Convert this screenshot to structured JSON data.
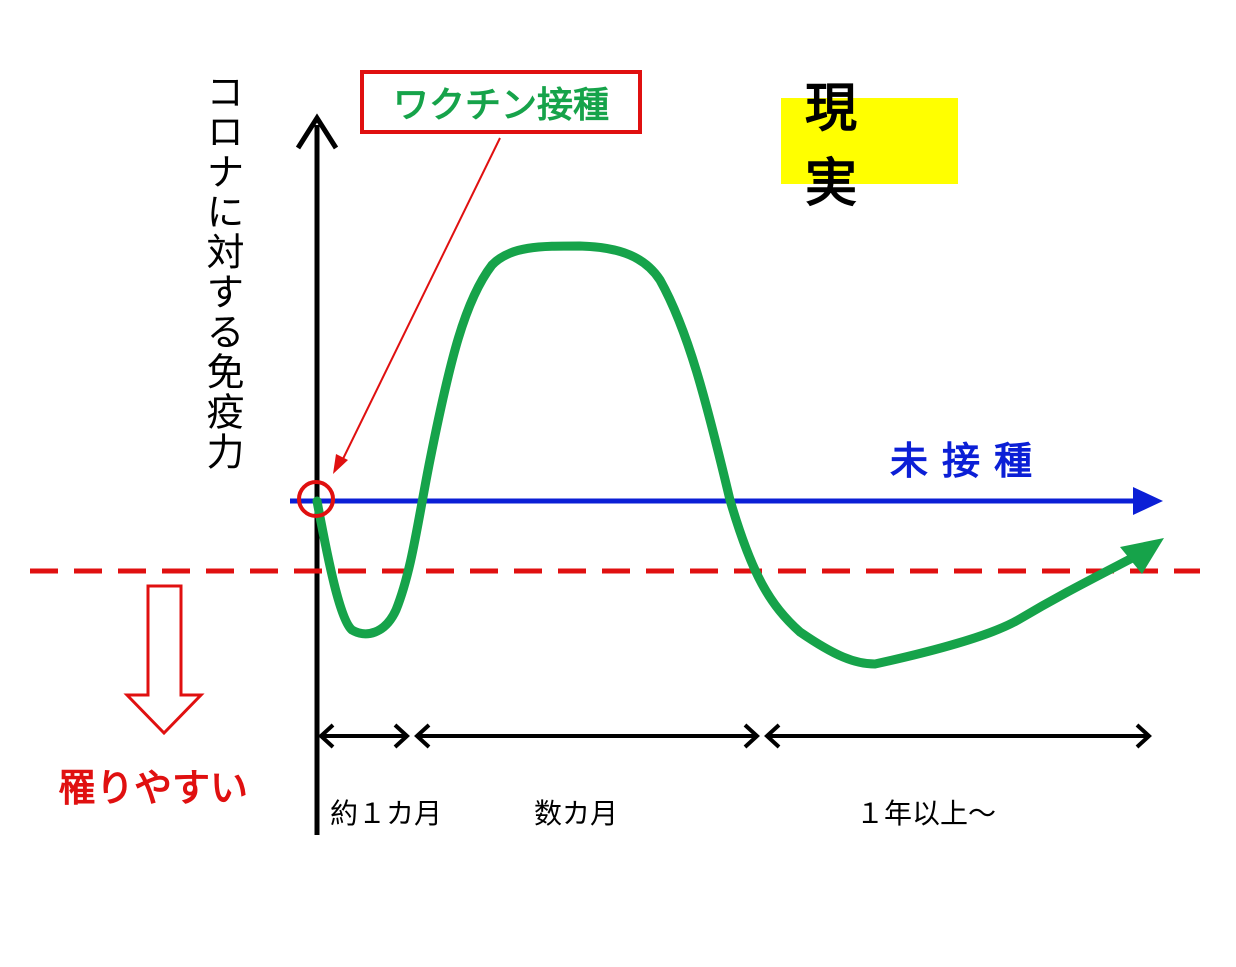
{
  "ylabel": "コロナに対する免疫力",
  "vaccination_label": "ワクチン接種",
  "reality_label": "現 実",
  "unvaccinated_label": "未接種",
  "infection_label": "罹りやすい",
  "periods": [
    "約１カ月",
    "数カ月",
    "１年以上～"
  ],
  "colors": {
    "immunity_curve": "#16a34a",
    "baseline": "#0b1fd6",
    "threshold": "#e01010",
    "highlight": "#ffff00"
  }
}
